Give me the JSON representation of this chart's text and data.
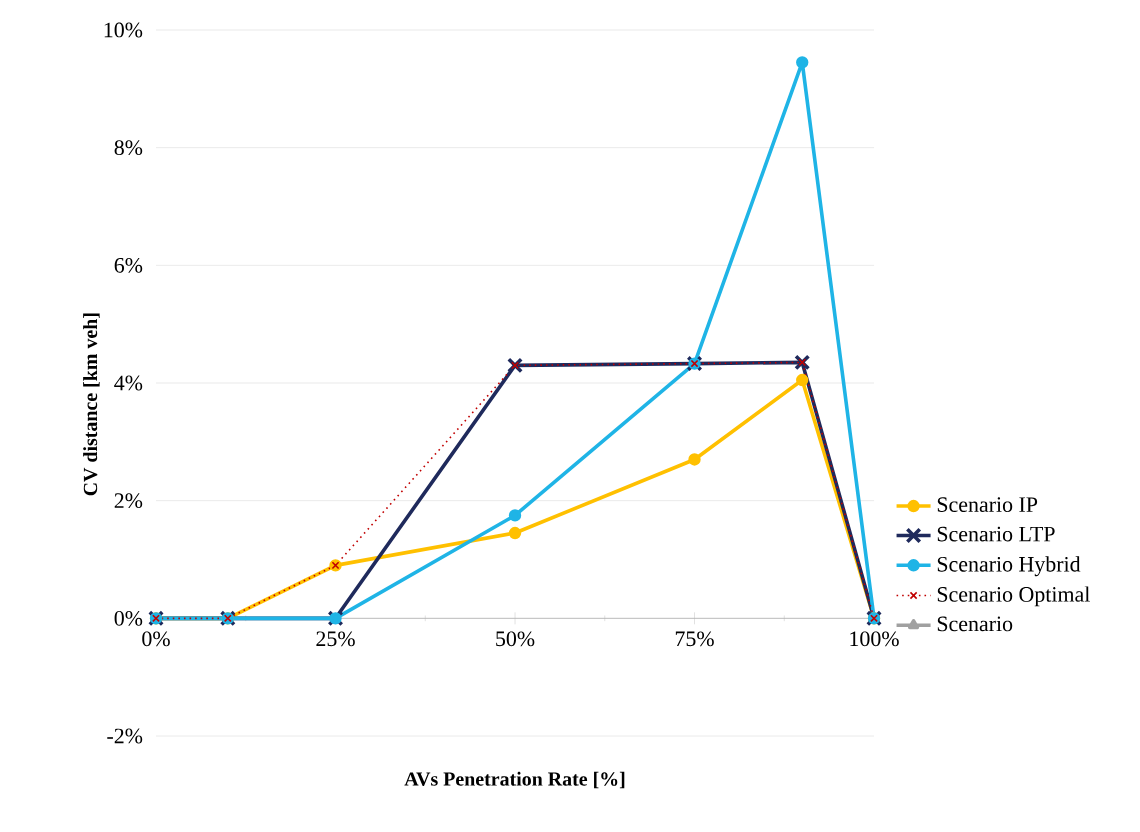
{
  "chart_data": {
    "type": "line",
    "xlabel": "AVs Penetration Rate [%]",
    "ylabel": "CV distance [km veh]",
    "x": [
      0,
      10,
      25,
      50,
      75,
      90,
      100
    ],
    "xlim": [
      0,
      100
    ],
    "xticks": [
      {
        "value": 0,
        "label": "0%"
      },
      {
        "value": 25,
        "label": "25%"
      },
      {
        "value": 50,
        "label": "50%"
      },
      {
        "value": 75,
        "label": "75%"
      },
      {
        "value": 100,
        "label": "100%"
      }
    ],
    "ylim": [
      -2,
      10
    ],
    "yticks": [
      {
        "value": -2,
        "label": "-2%"
      },
      {
        "value": 0,
        "label": "0%"
      },
      {
        "value": 2,
        "label": "2%"
      },
      {
        "value": 4,
        "label": "4%"
      },
      {
        "value": 6,
        "label": "6%"
      },
      {
        "value": 8,
        "label": "8%"
      },
      {
        "value": 10,
        "label": "10%"
      }
    ],
    "grid": "y",
    "legend": "right",
    "series": [
      {
        "name": "Scenario IP",
        "color": "#ffc000",
        "marker": "circle",
        "line_style": "solid",
        "values": [
          0,
          0,
          0.9,
          1.45,
          2.7,
          4.05,
          0
        ]
      },
      {
        "name": "Scenario LTP",
        "color": "#1f2a5c",
        "marker": "cross",
        "line_style": "solid",
        "values": [
          0,
          0,
          0,
          4.3,
          4.33,
          4.35,
          0
        ]
      },
      {
        "name": "Scenario Hybrid",
        "color": "#1fb4e6",
        "marker": "circle",
        "line_style": "solid",
        "values": [
          0,
          0,
          0,
          1.75,
          4.33,
          9.45,
          0
        ]
      },
      {
        "name": "Scenario Optimal",
        "color": "#c00000",
        "marker": "cross",
        "line_style": "dotted",
        "values": [
          0,
          0,
          0.9,
          4.3,
          4.33,
          4.35,
          0
        ]
      },
      {
        "name": "Scenario",
        "color": "#a0a0a0",
        "marker": "triangle",
        "line_style": "solid",
        "values": [
          null,
          null,
          null,
          null,
          null,
          null,
          null
        ]
      }
    ]
  }
}
